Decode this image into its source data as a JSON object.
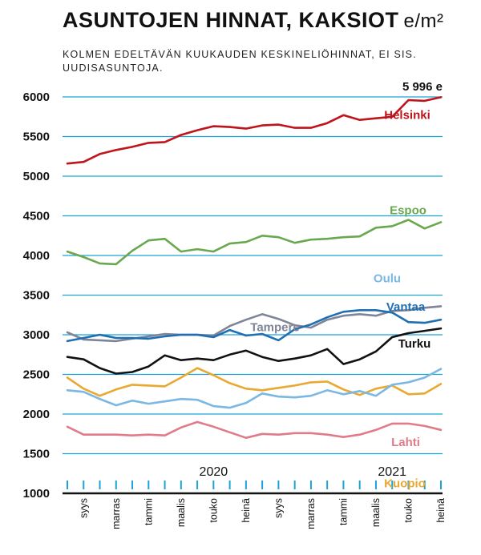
{
  "header": {
    "title": "ASUNTOJEN HINNAT, KAKSIOT",
    "unit": "e/m²",
    "subtitle": "KOLMEN EDELTÄVÄN KUUKAUDEN KESKINELIÖHINNAT, EI SIS. UUDISASUNTOJA."
  },
  "chart_data": {
    "type": "line",
    "y_ticks": [
      1000,
      1500,
      2000,
      2500,
      3000,
      3500,
      4000,
      4500,
      5000,
      5500,
      6000
    ],
    "ylim": [
      1000,
      6000
    ],
    "grid": true,
    "x_tick_labels": [
      "syys",
      "marras",
      "tammi",
      "maalis",
      "touko",
      "heinä",
      "syys",
      "marras",
      "tammi",
      "maalis",
      "touko",
      "heinä"
    ],
    "year_labels": [
      {
        "label": "2020",
        "at_index": 9
      },
      {
        "label": "2021",
        "at_index": 20
      }
    ],
    "end_value_label": "5 996 e",
    "series": [
      {
        "name": "Helsinki",
        "color": "#c0141c",
        "values": [
          5160,
          5180,
          5280,
          5330,
          5370,
          5420,
          5430,
          5520,
          5580,
          5630,
          5620,
          5600,
          5640,
          5650,
          5610,
          5610,
          5670,
          5770,
          5710,
          5730,
          5750,
          5960,
          5950,
          5996
        ]
      },
      {
        "name": "Espoo",
        "color": "#6aa84f",
        "values": [
          4050,
          3980,
          3900,
          3890,
          4060,
          4190,
          4210,
          4050,
          4080,
          4050,
          4150,
          4170,
          4250,
          4230,
          4160,
          4200,
          4210,
          4230,
          4240,
          4350,
          4370,
          4450,
          4340,
          4420
        ]
      },
      {
        "name": "Vantaa",
        "color": "#1f6fb2",
        "values": [
          2920,
          2960,
          3000,
          2960,
          2960,
          2950,
          2980,
          3000,
          3000,
          2970,
          3060,
          2990,
          3010,
          2930,
          3070,
          3130,
          3220,
          3290,
          3310,
          3310,
          3280,
          3160,
          3150,
          3190
        ]
      },
      {
        "name": "Tampere",
        "color": "#7f8597",
        "values": [
          3030,
          2940,
          2930,
          2920,
          2950,
          2980,
          3010,
          3000,
          3000,
          2990,
          3110,
          3190,
          3260,
          3200,
          3120,
          3090,
          3190,
          3240,
          3260,
          3240,
          3300,
          3310,
          3340,
          3360
        ]
      },
      {
        "name": "Turku",
        "color": "#111111",
        "values": [
          2720,
          2690,
          2580,
          2510,
          2530,
          2600,
          2740,
          2680,
          2700,
          2680,
          2750,
          2800,
          2720,
          2670,
          2700,
          2740,
          2820,
          2630,
          2690,
          2790,
          2970,
          3020,
          3050,
          3080
        ]
      },
      {
        "name": "Oulu",
        "color": "#7ab8e3",
        "values": [
          2300,
          2280,
          2190,
          2110,
          2170,
          2130,
          2160,
          2190,
          2180,
          2100,
          2080,
          2140,
          2260,
          2220,
          2210,
          2230,
          2300,
          2250,
          2290,
          2230,
          2370,
          2400,
          2460,
          2570
        ]
      },
      {
        "name": "Kuopio",
        "color": "#e8a932",
        "values": [
          2460,
          2320,
          2230,
          2310,
          2370,
          2360,
          2350,
          2460,
          2580,
          2490,
          2390,
          2320,
          2300,
          2330,
          2360,
          2400,
          2410,
          2310,
          2240,
          2320,
          2360,
          2250,
          2260,
          2380
        ]
      },
      {
        "name": "Lahti",
        "color": "#e07b89",
        "values": [
          1840,
          1740,
          1740,
          1740,
          1730,
          1740,
          1730,
          1830,
          1900,
          1840,
          1770,
          1700,
          1750,
          1740,
          1760,
          1760,
          1740,
          1710,
          1740,
          1800,
          1880,
          1880,
          1850,
          1800
        ]
      }
    ]
  }
}
